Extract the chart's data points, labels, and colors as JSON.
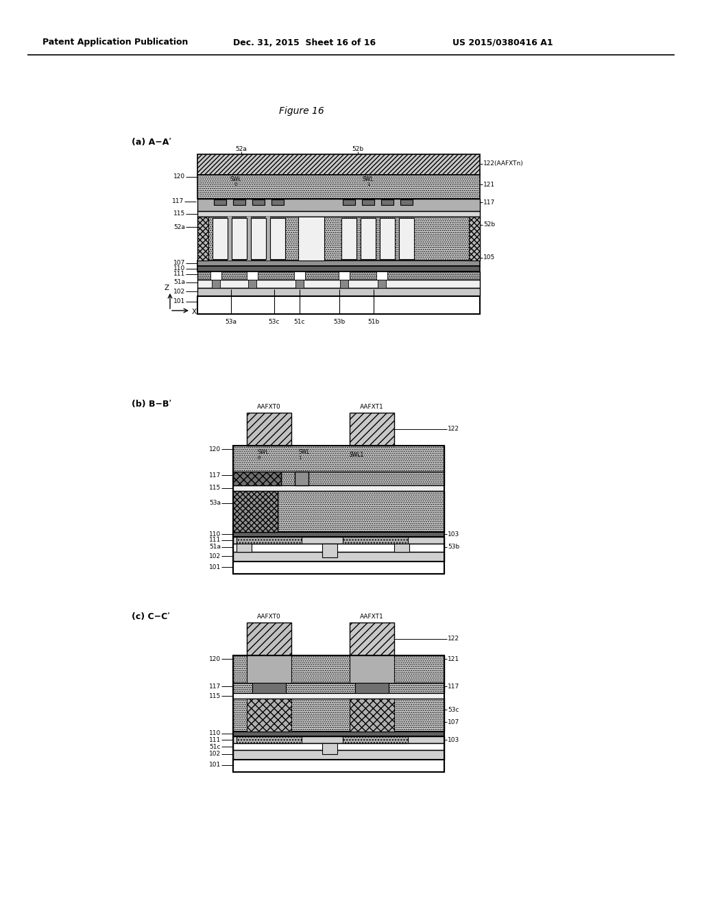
{
  "header_left": "Patent Application Publication",
  "header_center": "Dec. 31, 2015  Sheet 16 of 16",
  "header_right": "US 2015/0380416 A1",
  "title": "Figure 16",
  "bg_color": "#ffffff"
}
